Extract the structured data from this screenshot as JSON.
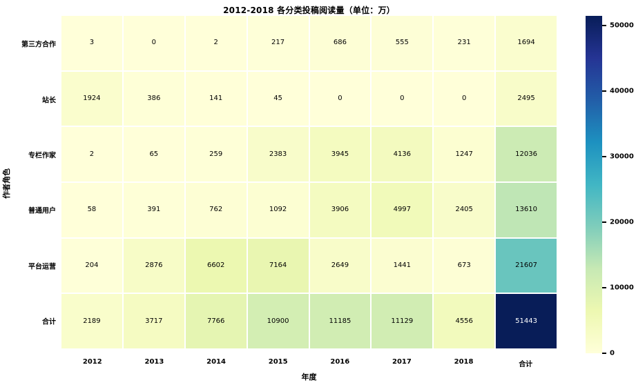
{
  "chart_data": {
    "type": "heatmap",
    "title": "2012-2018 各分类投稿阅读量（单位：万）",
    "xlabel": "年度",
    "ylabel": "作者角色",
    "columns": [
      "2012",
      "2013",
      "2014",
      "2015",
      "2016",
      "2017",
      "2018",
      "合计"
    ],
    "rows": [
      "第三方合作",
      "站长",
      "专栏作家",
      "普通用户",
      "平台运营",
      "合计"
    ],
    "values": [
      [
        3,
        0,
        2,
        217,
        686,
        555,
        231,
        1694
      ],
      [
        1924,
        386,
        141,
        45,
        0,
        0,
        0,
        2495
      ],
      [
        2,
        65,
        259,
        2383,
        3945,
        4136,
        1247,
        12036
      ],
      [
        58,
        391,
        762,
        1092,
        3906,
        4997,
        2405,
        13610
      ],
      [
        204,
        2876,
        6602,
        7164,
        2649,
        1441,
        673,
        21607
      ],
      [
        2189,
        3717,
        7766,
        10900,
        11185,
        11129,
        4556,
        51443
      ]
    ],
    "vmin": 0,
    "vmax": 51443,
    "colormap": "YlGnBu",
    "colormap_stops": [
      "#ffffd9",
      "#edf8b1",
      "#c7e9b4",
      "#7fcdbb",
      "#41b6c4",
      "#1d91c0",
      "#225ea8",
      "#253494",
      "#081d58"
    ],
    "colorbar_ticks": [
      0,
      10000,
      20000,
      30000,
      40000,
      50000
    ],
    "grid": false,
    "grid_gap_color": "#ffffff",
    "legend_position": "right-colorbar",
    "annotated": true
  }
}
